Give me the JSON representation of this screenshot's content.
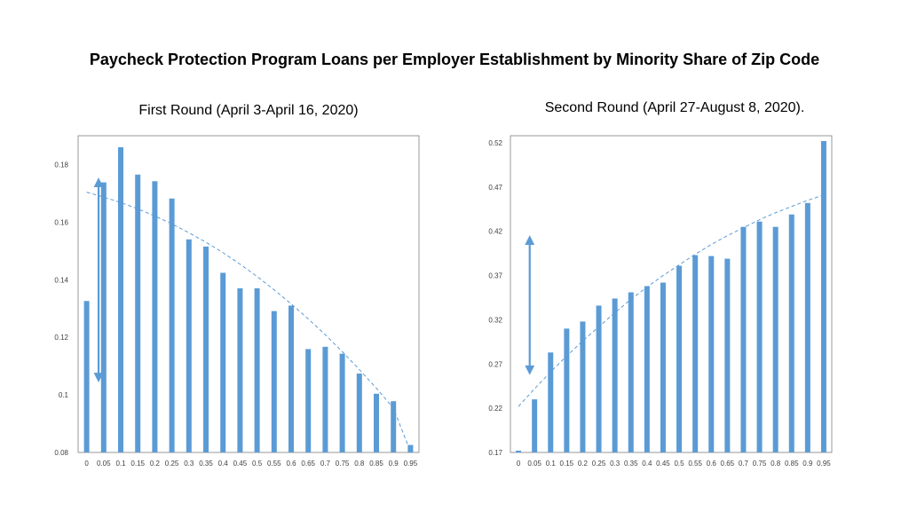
{
  "page": {
    "title": "Paycheck Protection Program Loans per Employer Establishment by Minority Share of Zip Code"
  },
  "colors": {
    "bar": "#5b9bd5",
    "trend": "#5b9bd5",
    "arrow": "#5b9bd5",
    "frame": "#7f7f7f"
  },
  "chart_data": [
    {
      "type": "bar",
      "title": "First Round (April 3-April 16, 2020)",
      "categories": [
        "0",
        "0.05",
        "0.1",
        "0.15",
        "0.2",
        "0.25",
        "0.3",
        "0.35",
        "0.4",
        "0.45",
        "0.5",
        "0.55",
        "0.6",
        "0.65",
        "0.7",
        "0.75",
        "0.8",
        "0.85",
        "0.9",
        "0.95"
      ],
      "values": [
        0.1326,
        0.1738,
        0.186,
        0.1765,
        0.1742,
        0.1682,
        0.154,
        0.1515,
        0.1424,
        0.137,
        0.137,
        0.1291,
        0.131,
        0.1159,
        0.1167,
        0.1143,
        0.1074,
        0.1004,
        0.0978,
        0.0826
      ],
      "trendline": [
        0.1704,
        0.1687,
        0.1668,
        0.1646,
        0.1621,
        0.1594,
        0.1563,
        0.153,
        0.1494,
        0.1454,
        0.1411,
        0.1365,
        0.1316,
        0.1264,
        0.1209,
        0.115,
        0.1088,
        0.1023,
        0.0954,
        0.0802
      ],
      "arrow": {
        "at": 0.05,
        "from": 0.106,
        "to": 0.1738
      },
      "yticks": [
        "0.08",
        "0.1",
        "0.12",
        "0.14",
        "0.16",
        "0.18"
      ],
      "ylim": [
        0.08,
        0.19
      ],
      "xlabel": "",
      "ylabel": ""
    },
    {
      "type": "bar",
      "title": "Second Round (April 27-August 8, 2020).",
      "categories": [
        "0",
        "0.05",
        "0.1",
        "0.15",
        "0.2",
        "0.25",
        "0.3",
        "0.35",
        "0.4",
        "0.45",
        "0.5",
        "0.55",
        "0.6",
        "0.65",
        "0.7",
        "0.75",
        "0.8",
        "0.85",
        "0.9",
        "0.95"
      ],
      "values": [
        0.172,
        0.23,
        0.283,
        0.31,
        0.318,
        0.336,
        0.344,
        0.351,
        0.358,
        0.362,
        0.381,
        0.393,
        0.392,
        0.389,
        0.425,
        0.431,
        0.425,
        0.439,
        0.452,
        0.522
      ],
      "trendline": [
        0.222,
        0.242,
        0.261,
        0.279,
        0.296,
        0.312,
        0.328,
        0.343,
        0.357,
        0.37,
        0.382,
        0.394,
        0.405,
        0.415,
        0.424,
        0.433,
        0.441,
        0.448,
        0.455,
        0.461
      ],
      "arrow": {
        "at": 0.05,
        "from": 0.263,
        "to": 0.41
      },
      "yticks": [
        "0.17",
        "0.22",
        "0.27",
        "0.32",
        "0.37",
        "0.42",
        "0.47",
        "0.52"
      ],
      "ylim": [
        0.17,
        0.528
      ],
      "xlabel": "",
      "ylabel": ""
    }
  ]
}
